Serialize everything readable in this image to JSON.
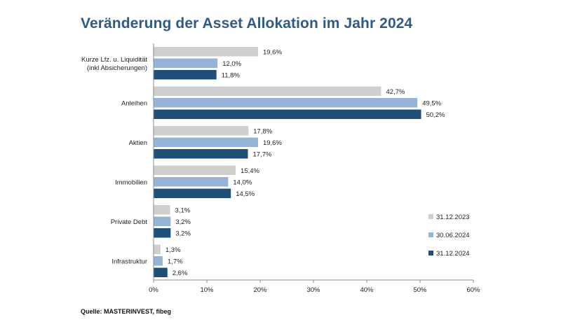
{
  "chart_data": {
    "type": "bar",
    "orientation": "horizontal",
    "title": "Veränderung der Asset Allokation im Jahr 2024",
    "source": "Quelle: MASTERINVEST, fibeg",
    "categories": [
      [
        "Kurze Lfz. u. Liquidität",
        "(inkl Absicherungen)"
      ],
      [
        "Anleihen"
      ],
      [
        "Aktien"
      ],
      [
        "Immobilien"
      ],
      [
        "Private Debt"
      ],
      [
        "Infrastruktur"
      ]
    ],
    "series": [
      {
        "name": "31.12.2023",
        "color": "#cfcfcf",
        "values": [
          19.6,
          42.7,
          17.8,
          15.4,
          3.1,
          1.3
        ],
        "labels": [
          "19,6%",
          "42,7%",
          "17,8%",
          "15,4%",
          "3,1%",
          "1,3%"
        ]
      },
      {
        "name": "30.06.2024",
        "color": "#95b3d7",
        "values": [
          12.0,
          49.5,
          19.6,
          14.0,
          3.2,
          1.7
        ],
        "labels": [
          "12,0%",
          "49,5%",
          "19,6%",
          "14,0%",
          "3,2%",
          "1,7%"
        ]
      },
      {
        "name": "31.12.2024",
        "color": "#1f4e79",
        "values": [
          11.8,
          50.2,
          17.7,
          14.5,
          3.2,
          2.6
        ],
        "labels": [
          "11,8%",
          "50,2%",
          "17,7%",
          "14,5%",
          "3,2%",
          "2,6%"
        ]
      }
    ],
    "xlim": [
      0,
      60
    ],
    "xticks": [
      0,
      10,
      20,
      30,
      40,
      50,
      60
    ],
    "xtick_labels": [
      "0%",
      "10%",
      "20%",
      "30%",
      "40%",
      "50%",
      "60%"
    ],
    "legend_position": "bottom-right",
    "grid": false
  }
}
